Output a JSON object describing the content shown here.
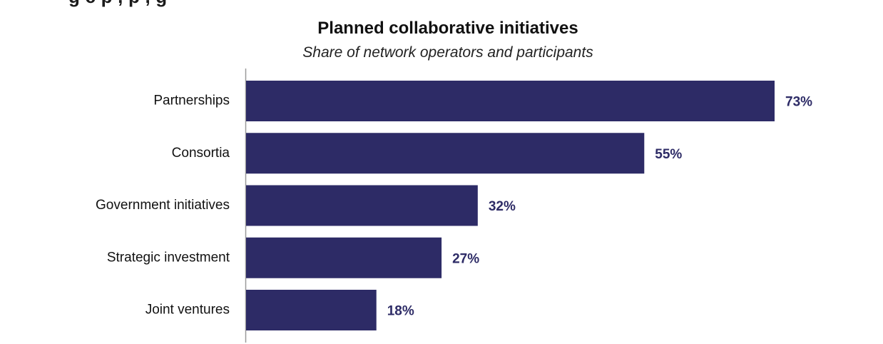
{
  "header_partial_text": "g c  p  ,   p   , g",
  "chart_data": {
    "type": "bar",
    "orientation": "horizontal",
    "title": "Planned collaborative initiatives",
    "subtitle": "Share of network operators and participants",
    "categories": [
      "Partnerships",
      "Consortia",
      "Government initiatives",
      "Strategic investment",
      "Joint ventures"
    ],
    "values": [
      73,
      55,
      32,
      27,
      18
    ],
    "value_labels": [
      "73%",
      "55%",
      "32%",
      "27%",
      "18%"
    ],
    "unit": "%",
    "xlim": [
      0,
      100
    ],
    "grid": false,
    "legend": "none",
    "bar_color": "#2d2b66",
    "axis_color": "#9a9a9a"
  }
}
